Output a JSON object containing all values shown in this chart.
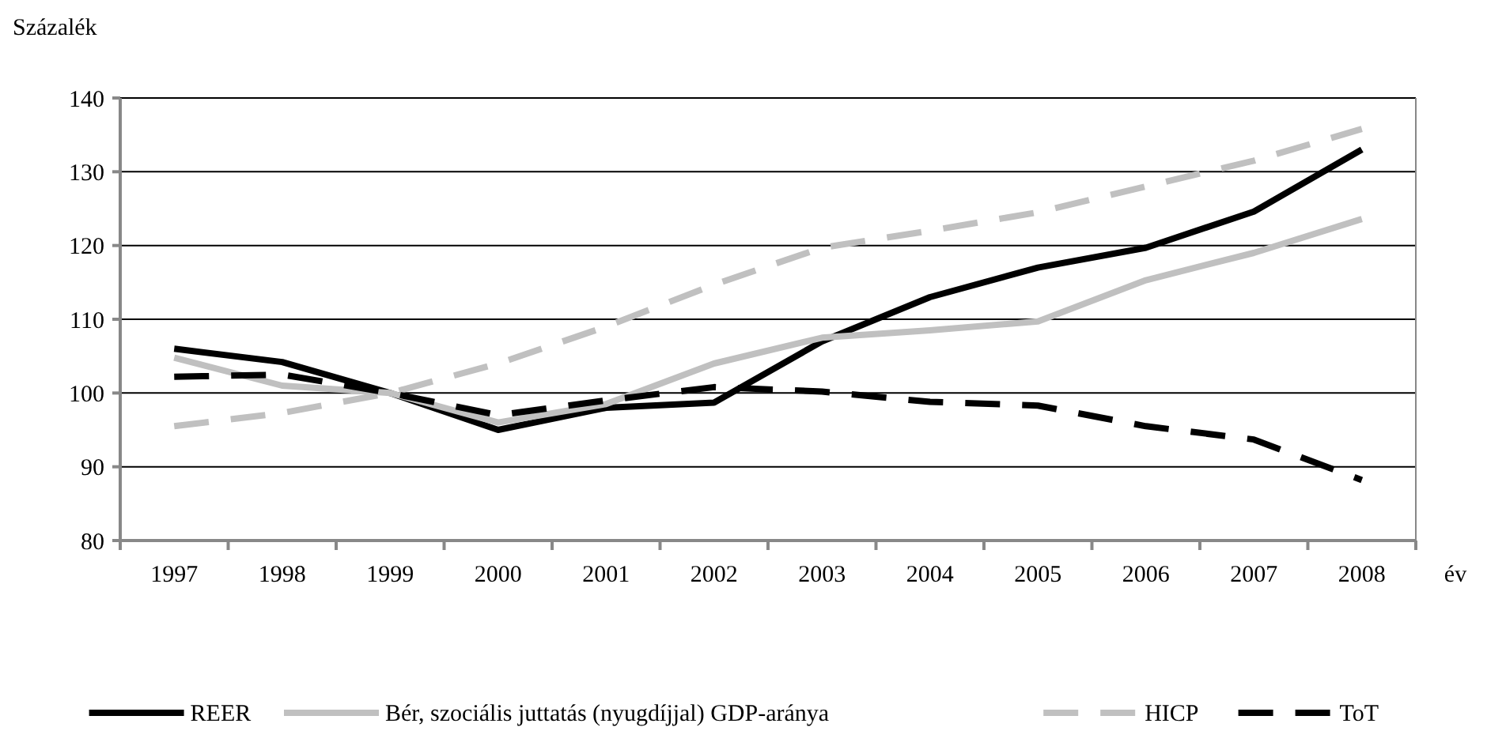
{
  "chart_data": {
    "type": "line",
    "ylabel": "Százalék",
    "xlabel": "év",
    "categories": [
      "1997",
      "1998",
      "1999",
      "2000",
      "2001",
      "2002",
      "2003",
      "2004",
      "2005",
      "2006",
      "2007",
      "2008"
    ],
    "series": [
      {
        "name": "REER",
        "color": "#000000",
        "line_style": "solid",
        "values": [
          106,
          104.2,
          100,
          95,
          98,
          98.7,
          107,
          113,
          117,
          119.7,
          124.6,
          133
        ]
      },
      {
        "name": "Bér, szociális juttatás (nyugdíjjal) GDP-aránya",
        "color": "#c0c0c0",
        "line_style": "solid",
        "values": [
          104.8,
          101,
          100,
          96,
          98.5,
          104,
          107.5,
          108.5,
          109.7,
          115.3,
          119,
          123.6
        ]
      },
      {
        "name": "HICP",
        "color": "#c0c0c0",
        "line_style": "dashed",
        "values": [
          95.5,
          97.3,
          100,
          104,
          109,
          114.7,
          119.7,
          122,
          124.5,
          128,
          131.5,
          135.8
        ]
      },
      {
        "name": "ToT",
        "color": "#000000",
        "line_style": "dashed",
        "values": [
          102.2,
          102.5,
          100,
          97,
          99,
          100.8,
          100.2,
          98.8,
          98.3,
          95.5,
          93.7,
          88.2
        ]
      }
    ],
    "ylim": [
      80,
      140
    ],
    "yticks": [
      80,
      90,
      100,
      110,
      120,
      130,
      140
    ],
    "grid": "y",
    "legend": "bottom",
    "marker": "none"
  }
}
